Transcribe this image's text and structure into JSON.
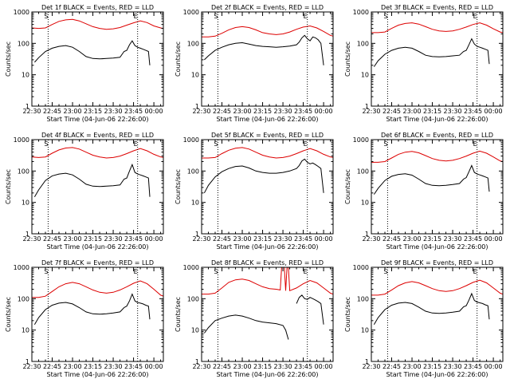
{
  "chart_data": {
    "type": "line",
    "layout": "3x3 grid of panels",
    "y_scale": "log",
    "ylim": [
      1,
      1000
    ],
    "y_ticks": [
      "1",
      "10",
      "100",
      "1000"
    ],
    "x_ticks": [
      "22:30",
      "22:45",
      "23:00",
      "23:15",
      "23:30",
      "23:45",
      "00:00"
    ],
    "x_ticks_minutes": [
      0,
      15,
      30,
      45,
      60,
      75,
      90
    ],
    "xlim_minutes": [
      0,
      97
    ],
    "xlabel": "Start Time (04-Jun-06 22:26:00)",
    "ylabel": "Counts/sec",
    "colors": {
      "events": "#000000",
      "lld": "#dd0000",
      "axes": "#000000"
    },
    "markers": [
      {
        "label": "S",
        "x_minutes": 12
      },
      {
        "label": "E",
        "x_minutes": 78
      }
    ],
    "panels": [
      {
        "title": "Det 1f BLACK = Events, RED = LLD",
        "series": [
          {
            "key": "events",
            "x": [
              2,
              5,
              10,
              15,
              20,
              25,
              30,
              35,
              40,
              45,
              50,
              55,
              60,
              65,
              68,
              70,
              72,
              74,
              76,
              78,
              80,
              82,
              84,
              86,
              87
            ],
            "y": [
              25,
              35,
              55,
              70,
              80,
              85,
              75,
              55,
              38,
              33,
              32,
              33,
              34,
              36,
              55,
              60,
              90,
              120,
              85,
              75,
              70,
              65,
              60,
              55,
              20
            ]
          },
          {
            "key": "lld",
            "x": [
              0,
              5,
              10,
              15,
              20,
              25,
              30,
              35,
              40,
              45,
              50,
              55,
              60,
              65,
              70,
              75,
              80,
              85,
              90,
              95,
              97
            ],
            "y": [
              310,
              300,
              310,
              400,
              500,
              560,
              580,
              520,
              420,
              340,
              300,
              280,
              290,
              320,
              380,
              450,
              520,
              460,
              360,
              310,
              300
            ]
          }
        ]
      },
      {
        "title": "Det 2f BLACK = Events, RED = LLD",
        "series": [
          {
            "key": "events",
            "x": [
              2,
              5,
              10,
              15,
              20,
              25,
              30,
              35,
              40,
              45,
              50,
              55,
              60,
              65,
              70,
              72,
              74,
              76,
              78,
              80,
              82,
              84,
              86,
              88,
              90
            ],
            "y": [
              30,
              40,
              60,
              75,
              90,
              100,
              105,
              95,
              85,
              80,
              78,
              75,
              78,
              82,
              90,
              110,
              150,
              180,
              140,
              120,
              160,
              150,
              130,
              100,
              20
            ]
          },
          {
            "key": "lld",
            "x": [
              0,
              5,
              10,
              15,
              20,
              25,
              30,
              35,
              40,
              45,
              50,
              55,
              60,
              65,
              70,
              75,
              80,
              85,
              90,
              95,
              97
            ],
            "y": [
              160,
              160,
              170,
              210,
              270,
              320,
              340,
              320,
              270,
              220,
              200,
              190,
              200,
              230,
              280,
              330,
              360,
              310,
              240,
              180,
              170
            ]
          }
        ]
      },
      {
        "title": "Det 3f BLACK = Events, RED = LLD",
        "series": [
          {
            "key": "events",
            "x": [
              2,
              5,
              10,
              15,
              20,
              25,
              30,
              35,
              40,
              45,
              50,
              55,
              60,
              65,
              68,
              70,
              72,
              74,
              76,
              78,
              80,
              82,
              84,
              86,
              87
            ],
            "y": [
              18,
              28,
              45,
              60,
              70,
              75,
              70,
              55,
              42,
              38,
              37,
              38,
              40,
              42,
              55,
              60,
              90,
              140,
              95,
              80,
              75,
              70,
              65,
              60,
              22
            ]
          },
          {
            "key": "lld",
            "x": [
              0,
              5,
              10,
              15,
              20,
              25,
              30,
              35,
              40,
              45,
              50,
              55,
              60,
              65,
              70,
              75,
              80,
              85,
              90,
              95,
              97
            ],
            "y": [
              220,
              220,
              230,
              300,
              380,
              430,
              450,
              410,
              340,
              280,
              250,
              240,
              250,
              280,
              330,
              400,
              450,
              380,
              290,
              230,
              220
            ]
          }
        ]
      },
      {
        "title": "Det 4f BLACK = Events, RED = LLD",
        "series": [
          {
            "key": "events",
            "x": [
              2,
              5,
              10,
              15,
              20,
              25,
              30,
              35,
              40,
              45,
              50,
              55,
              60,
              65,
              68,
              70,
              72,
              74,
              76,
              78,
              80,
              82,
              84,
              86,
              87
            ],
            "y": [
              15,
              25,
              50,
              70,
              80,
              85,
              75,
              55,
              38,
              33,
              32,
              33,
              34,
              36,
              55,
              60,
              100,
              160,
              90,
              80,
              75,
              70,
              65,
              60,
              15
            ]
          },
          {
            "key": "lld",
            "x": [
              0,
              5,
              10,
              15,
              20,
              25,
              30,
              35,
              40,
              45,
              50,
              55,
              60,
              65,
              70,
              75,
              80,
              85,
              90,
              95,
              97
            ],
            "y": [
              280,
              270,
              280,
              370,
              470,
              540,
              560,
              500,
              400,
              320,
              280,
              260,
              270,
              300,
              360,
              440,
              520,
              440,
              340,
              280,
              270
            ]
          }
        ]
      },
      {
        "title": "Det 5f BLACK = Events, RED = LLD",
        "series": [
          {
            "key": "events",
            "x": [
              2,
              5,
              10,
              15,
              20,
              25,
              30,
              35,
              40,
              45,
              50,
              55,
              60,
              65,
              70,
              72,
              74,
              76,
              78,
              80,
              82,
              84,
              86,
              88,
              90
            ],
            "y": [
              20,
              35,
              65,
              95,
              120,
              140,
              145,
              125,
              100,
              90,
              85,
              85,
              90,
              100,
              120,
              150,
              210,
              240,
              190,
              170,
              180,
              160,
              140,
              120,
              20
            ]
          },
          {
            "key": "lld",
            "x": [
              0,
              5,
              10,
              15,
              20,
              25,
              30,
              35,
              40,
              45,
              50,
              55,
              60,
              65,
              70,
              75,
              80,
              85,
              90,
              95,
              97
            ],
            "y": [
              260,
              260,
              270,
              360,
              460,
              530,
              560,
              500,
              400,
              320,
              280,
              260,
              270,
              300,
              360,
              440,
              520,
              440,
              340,
              280,
              270
            ]
          }
        ]
      },
      {
        "title": "Det 6f BLACK = Events, RED = LLD",
        "series": [
          {
            "key": "events",
            "x": [
              2,
              5,
              10,
              15,
              20,
              25,
              30,
              35,
              40,
              45,
              50,
              55,
              60,
              65,
              68,
              70,
              72,
              74,
              76,
              78,
              80,
              82,
              84,
              86,
              87
            ],
            "y": [
              18,
              28,
              50,
              68,
              78,
              82,
              74,
              55,
              40,
              35,
              34,
              35,
              37,
              40,
              55,
              62,
              95,
              150,
              90,
              80,
              75,
              70,
              65,
              60,
              22
            ]
          },
          {
            "key": "lld",
            "x": [
              0,
              5,
              10,
              15,
              20,
              25,
              30,
              35,
              40,
              45,
              50,
              55,
              60,
              65,
              70,
              75,
              80,
              85,
              90,
              95,
              97
            ],
            "y": [
              190,
              190,
              200,
              260,
              340,
              400,
              420,
              380,
              310,
              250,
              220,
              210,
              220,
              250,
              300,
              370,
              430,
              370,
              280,
              210,
              200
            ]
          }
        ]
      },
      {
        "title": "Det 7f BLACK = Events, RED = LLD",
        "series": [
          {
            "key": "events",
            "x": [
              2,
              5,
              10,
              15,
              20,
              25,
              30,
              35,
              40,
              45,
              50,
              55,
              60,
              65,
              68,
              70,
              72,
              74,
              76,
              78,
              80,
              82,
              84,
              86,
              87
            ],
            "y": [
              15,
              25,
              45,
              62,
              72,
              76,
              68,
              52,
              38,
              33,
              32,
              33,
              35,
              38,
              52,
              58,
              85,
              140,
              85,
              75,
              72,
              68,
              62,
              58,
              22
            ]
          },
          {
            "key": "lld",
            "x": [
              0,
              5,
              10,
              15,
              20,
              25,
              30,
              35,
              40,
              45,
              50,
              55,
              60,
              65,
              70,
              75,
              80,
              85,
              90,
              95,
              97
            ],
            "y": [
              110,
              110,
              120,
              170,
              240,
              300,
              330,
              300,
              240,
              190,
              160,
              150,
              160,
              190,
              240,
              310,
              370,
              300,
              200,
              130,
              120
            ]
          }
        ]
      },
      {
        "title": "Det 8f BLACK = Events, RED = LLD",
        "series": [
          {
            "key": "events",
            "x": [
              2,
              5,
              10,
              15,
              20,
              25,
              30,
              35,
              40,
              45,
              50,
              55,
              60,
              62,
              64,
              66,
              68,
              70,
              72,
              74,
              76,
              78,
              80,
              82,
              84,
              86,
              88,
              90
            ],
            "y": [
              8,
              12,
              20,
              24,
              28,
              30,
              28,
              24,
              20,
              18,
              17,
              16,
              14,
              10,
              5,
              null,
              null,
              70,
              110,
              130,
              100,
              95,
              110,
              100,
              90,
              80,
              70,
              15
            ]
          },
          {
            "key": "lld",
            "x": [
              0,
              5,
              10,
              15,
              20,
              25,
              30,
              35,
              40,
              45,
              50,
              55,
              58,
              59,
              60,
              61,
              62,
              63,
              64,
              65,
              70,
              75,
              80,
              85,
              90,
              95,
              97
            ],
            "y": [
              140,
              140,
              150,
              220,
              330,
              400,
              420,
              380,
              300,
              240,
              210,
              200,
              190,
              1000,
              1000,
              1000,
              180,
              1000,
              1000,
              180,
              220,
              300,
              380,
              320,
              220,
              150,
              140
            ]
          }
        ]
      },
      {
        "title": "Det 9f BLACK = Events, RED = LLD",
        "series": [
          {
            "key": "events",
            "x": [
              2,
              5,
              10,
              15,
              20,
              25,
              30,
              35,
              40,
              45,
              50,
              55,
              60,
              65,
              68,
              70,
              72,
              74,
              76,
              78,
              80,
              82,
              84,
              86,
              87
            ],
            "y": [
              15,
              25,
              45,
              62,
              72,
              76,
              70,
              54,
              40,
              35,
              34,
              35,
              37,
              40,
              55,
              60,
              90,
              145,
              88,
              78,
              74,
              70,
              64,
              60,
              22
            ]
          },
          {
            "key": "lld",
            "x": [
              0,
              5,
              10,
              15,
              20,
              25,
              30,
              35,
              40,
              45,
              50,
              55,
              60,
              65,
              70,
              75,
              80,
              85,
              90,
              95,
              97
            ],
            "y": [
              130,
              130,
              140,
              190,
              260,
              320,
              350,
              320,
              260,
              210,
              180,
              170,
              180,
              210,
              260,
              330,
              390,
              320,
              220,
              150,
              140
            ]
          }
        ]
      }
    ]
  }
}
